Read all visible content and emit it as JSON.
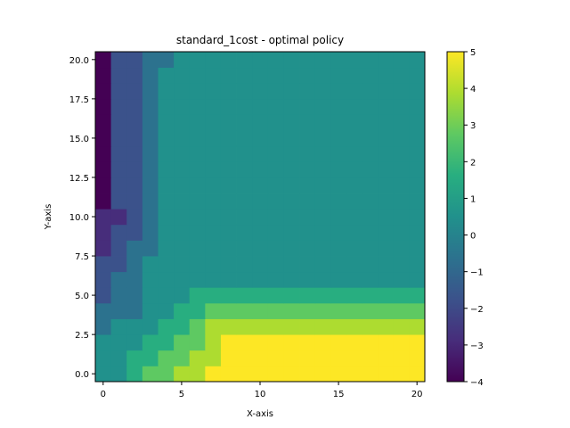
{
  "chart_data": {
    "type": "heatmap",
    "title": "standard_1cost - optimal policy",
    "xlabel": "X-axis",
    "ylabel": "Y-axis",
    "x_ticks": [
      0,
      5,
      10,
      15,
      20
    ],
    "x_tick_labels": [
      "0",
      "5",
      "10",
      "15",
      "20"
    ],
    "y_ticks": [
      0,
      2.5,
      5,
      7.5,
      10,
      12.5,
      15,
      17.5,
      20
    ],
    "y_tick_labels": [
      "0.0",
      "2.5",
      "5.0",
      "7.5",
      "10.0",
      "12.5",
      "15.0",
      "17.5",
      "20.0"
    ],
    "xlim": [
      -0.5,
      20.5
    ],
    "ylim": [
      -0.5,
      20.5
    ],
    "colormap": "viridis",
    "colorbar": {
      "vmin": -4,
      "vmax": 5,
      "ticks": [
        -4,
        -3,
        -2,
        -1,
        0,
        1,
        2,
        3,
        4,
        5
      ],
      "tick_labels": [
        "−4",
        "−3",
        "−2",
        "−1",
        "0",
        "1",
        "2",
        "3",
        "4",
        "5"
      ]
    },
    "grid": false,
    "rows_order": "row index = y value (y=0 first)",
    "values": [
      [
        0,
        0,
        1,
        2,
        2,
        3,
        3,
        4,
        4,
        5,
        5,
        5,
        5,
        5,
        5,
        5,
        5,
        5,
        5,
        5,
        5
      ],
      [
        0,
        0,
        1,
        1,
        2,
        2,
        3,
        3,
        4,
        5,
        5,
        5,
        5,
        5,
        5,
        5,
        5,
        5,
        5,
        5,
        5
      ],
      [
        0,
        0,
        0,
        1,
        1,
        2,
        2,
        3,
        4,
        4,
        4,
        4,
        4,
        4,
        4,
        4,
        4,
        4,
        4,
        4,
        4
      ],
      [
        -1,
        0,
        0,
        0,
        1,
        1,
        2,
        3,
        3,
        3,
        3,
        3,
        3,
        3,
        3,
        3,
        3,
        3,
        3,
        3,
        3
      ],
      [
        -1,
        -1,
        -1,
        0,
        0,
        1,
        1,
        2,
        2,
        2,
        2,
        2,
        2,
        2,
        2,
        2,
        2,
        2,
        2,
        2,
        2
      ],
      [
        -2,
        -1,
        -1,
        0,
        0,
        0,
        1,
        1,
        1,
        1,
        1,
        1,
        1,
        1,
        1,
        1,
        1,
        1,
        1,
        1,
        1
      ],
      [
        -2,
        -1,
        -1,
        0,
        0,
        0,
        0,
        0,
        0,
        0,
        0,
        0,
        0,
        0,
        0,
        0,
        0,
        0,
        0,
        0,
        0
      ],
      [
        -2,
        -2,
        -1,
        0,
        0,
        0,
        0,
        0,
        0,
        0,
        0,
        0,
        0,
        0,
        0,
        0,
        0,
        0,
        0,
        0,
        0
      ],
      [
        -3,
        -2,
        -1,
        -1,
        0,
        0,
        0,
        0,
        0,
        0,
        0,
        0,
        0,
        0,
        0,
        0,
        0,
        0,
        0,
        0,
        0
      ],
      [
        -3,
        -2,
        -2,
        -1,
        0,
        0,
        0,
        0,
        0,
        0,
        0,
        0,
        0,
        0,
        0,
        0,
        0,
        0,
        0,
        0,
        0
      ],
      [
        -3,
        -3,
        -2,
        -1,
        0,
        0,
        0,
        0,
        0,
        0,
        0,
        0,
        0,
        0,
        0,
        0,
        0,
        0,
        0,
        0,
        0
      ],
      [
        -4,
        -2,
        -2,
        -1,
        0,
        0,
        0,
        0,
        0,
        0,
        0,
        0,
        0,
        0,
        0,
        0,
        0,
        0,
        0,
        0,
        0
      ],
      [
        -4,
        -2,
        -2,
        -1,
        0,
        0,
        0,
        0,
        0,
        0,
        0,
        0,
        0,
        0,
        0,
        0,
        0,
        0,
        0,
        0,
        0
      ],
      [
        -4,
        -2,
        -2,
        -1,
        0,
        0,
        0,
        0,
        0,
        0,
        0,
        0,
        0,
        0,
        0,
        0,
        0,
        0,
        0,
        0,
        0
      ],
      [
        -4,
        -2,
        -2,
        -1,
        0,
        0,
        0,
        0,
        0,
        0,
        0,
        0,
        0,
        0,
        0,
        0,
        0,
        0,
        0,
        0,
        0
      ],
      [
        -4,
        -2,
        -2,
        -1,
        0,
        0,
        0,
        0,
        0,
        0,
        0,
        0,
        0,
        0,
        0,
        0,
        0,
        0,
        0,
        0,
        0
      ],
      [
        -4,
        -2,
        -2,
        -1,
        0,
        0,
        0,
        0,
        0,
        0,
        0,
        0,
        0,
        0,
        0,
        0,
        0,
        0,
        0,
        0,
        0
      ],
      [
        -4,
        -2,
        -2,
        -1,
        0,
        0,
        0,
        0,
        0,
        0,
        0,
        0,
        0,
        0,
        0,
        0,
        0,
        0,
        0,
        0,
        0
      ],
      [
        -4,
        -2,
        -2,
        -1,
        0,
        0,
        0,
        0,
        0,
        0,
        0,
        0,
        0,
        0,
        0,
        0,
        0,
        0,
        0,
        0,
        0
      ],
      [
        -4,
        -2,
        -2,
        -1,
        0,
        0,
        0,
        0,
        0,
        0,
        0,
        0,
        0,
        0,
        0,
        0,
        0,
        0,
        0,
        0,
        0
      ],
      [
        -4,
        -2,
        -2,
        -1,
        -1,
        0,
        0,
        0,
        0,
        0,
        0,
        0,
        0,
        0,
        0,
        0,
        0,
        0,
        0,
        0,
        0
      ]
    ],
    "value_colors": {
      "-4": "#440154",
      "-3": "#472d7b",
      "-2": "#3b528b",
      "-1": "#2c728e",
      "0": "#21918c",
      "1": "#28ae80",
      "2": "#5ec962",
      "3": "#addc30",
      "4": "#fde725",
      "5": "#fde725"
    }
  }
}
